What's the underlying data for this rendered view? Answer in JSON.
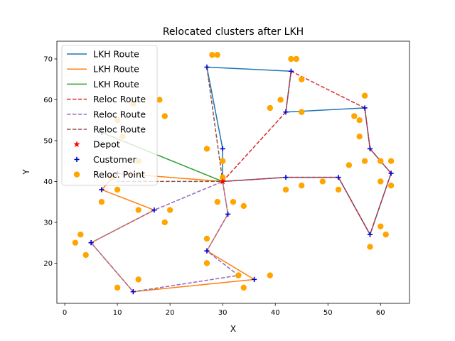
{
  "chart_data": {
    "type": "line",
    "title": "Relocated clusters after LKH",
    "xlabel": "X",
    "ylabel": "Y",
    "xlim": [
      -1.5,
      65.5
    ],
    "ylim": [
      10.15,
      74.35
    ],
    "xticks": [
      0,
      10,
      20,
      30,
      40,
      50,
      60
    ],
    "yticks": [
      20,
      30,
      40,
      50,
      60,
      70
    ],
    "grid": false,
    "legend_position": "top-left",
    "depot": [
      30,
      40
    ],
    "series": [
      {
        "name": "LKH Route",
        "style": "solid",
        "color": "#1f77b4",
        "points": [
          [
            30,
            40
          ],
          [
            30,
            48
          ],
          [
            27,
            68
          ],
          [
            43,
            67
          ],
          [
            42,
            57
          ],
          [
            57,
            58
          ],
          [
            58,
            48
          ],
          [
            62,
            42
          ],
          [
            58,
            27
          ],
          [
            52,
            41
          ],
          [
            42,
            41
          ],
          [
            30,
            40
          ]
        ]
      },
      {
        "name": "LKH Route",
        "style": "solid",
        "color": "#ff7f0e",
        "points": [
          [
            30,
            40
          ],
          [
            31,
            32
          ],
          [
            27,
            23
          ],
          [
            36,
            16
          ],
          [
            13,
            13
          ],
          [
            5,
            25
          ],
          [
            17,
            33
          ],
          [
            7,
            38
          ],
          [
            10,
            42
          ],
          [
            30,
            40
          ]
        ]
      },
      {
        "name": "LKH Route",
        "style": "solid",
        "color": "#2ca02c",
        "points": [
          [
            30,
            40
          ],
          [
            7,
            52
          ],
          [
            30,
            40
          ]
        ]
      },
      {
        "name": "Reloc Route",
        "style": "dashed",
        "color": "#d62728",
        "points": [
          [
            30,
            40
          ],
          [
            42,
            57
          ],
          [
            43,
            67
          ],
          [
            57,
            58
          ],
          [
            58,
            48
          ],
          [
            62,
            42
          ],
          [
            58,
            27
          ],
          [
            52,
            41
          ],
          [
            42,
            41
          ],
          [
            30,
            40
          ]
        ]
      },
      {
        "name": "Reloc Route",
        "style": "dashed",
        "color": "#9467bd",
        "points": [
          [
            30,
            40
          ],
          [
            31,
            32
          ],
          [
            27,
            23
          ],
          [
            33,
            17
          ],
          [
            13,
            13
          ],
          [
            5,
            25
          ],
          [
            17,
            33
          ],
          [
            30,
            40
          ]
        ]
      },
      {
        "name": "Reloc Route",
        "style": "dashed",
        "color": "#8c564b",
        "points": [
          [
            27,
            68
          ],
          [
            30,
            40
          ],
          [
            10,
            40
          ]
        ]
      }
    ],
    "customers": [
      [
        30,
        48
      ],
      [
        27,
        68
      ],
      [
        43,
        67
      ],
      [
        42,
        57
      ],
      [
        57,
        58
      ],
      [
        58,
        48
      ],
      [
        62,
        42
      ],
      [
        58,
        27
      ],
      [
        52,
        41
      ],
      [
        42,
        41
      ],
      [
        31,
        32
      ],
      [
        27,
        23
      ],
      [
        36,
        16
      ],
      [
        13,
        13
      ],
      [
        5,
        25
      ],
      [
        17,
        33
      ],
      [
        7,
        38
      ],
      [
        10,
        42
      ],
      [
        7,
        52
      ]
    ],
    "reloc_points": [
      [
        28,
        71
      ],
      [
        29,
        71
      ],
      [
        43,
        70
      ],
      [
        44,
        70
      ],
      [
        45,
        65
      ],
      [
        41,
        60
      ],
      [
        39,
        58
      ],
      [
        45,
        57
      ],
      [
        57,
        61
      ],
      [
        55,
        56
      ],
      [
        56,
        55
      ],
      [
        56,
        51
      ],
      [
        18,
        60
      ],
      [
        19,
        56
      ],
      [
        13,
        59
      ],
      [
        10,
        55
      ],
      [
        11,
        51
      ],
      [
        14,
        45
      ],
      [
        27,
        48
      ],
      [
        30,
        45
      ],
      [
        30,
        41
      ],
      [
        9,
        41
      ],
      [
        10,
        38
      ],
      [
        7,
        35
      ],
      [
        14,
        33
      ],
      [
        20,
        33
      ],
      [
        19,
        30
      ],
      [
        29,
        35
      ],
      [
        32,
        35
      ],
      [
        34,
        34
      ],
      [
        54,
        44
      ],
      [
        57,
        45
      ],
      [
        60,
        45
      ],
      [
        62,
        45
      ],
      [
        60,
        40
      ],
      [
        62,
        39
      ],
      [
        42,
        38
      ],
      [
        45,
        39
      ],
      [
        49,
        40
      ],
      [
        52,
        38
      ],
      [
        60,
        29
      ],
      [
        61,
        27
      ],
      [
        58,
        24
      ],
      [
        27,
        26
      ],
      [
        27,
        20
      ],
      [
        33,
        17
      ],
      [
        39,
        17
      ],
      [
        34,
        14
      ],
      [
        14,
        16
      ],
      [
        10,
        14
      ],
      [
        3,
        27
      ],
      [
        2,
        25
      ],
      [
        4,
        22
      ]
    ],
    "legend": [
      {
        "label": "LKH Route",
        "kind": "line",
        "style": "solid",
        "color": "#1f77b4"
      },
      {
        "label": "LKH Route",
        "kind": "line",
        "style": "solid",
        "color": "#ff7f0e"
      },
      {
        "label": "LKH Route",
        "kind": "line",
        "style": "solid",
        "color": "#2ca02c"
      },
      {
        "label": "Reloc Route",
        "kind": "line",
        "style": "dashed",
        "color": "#d62728"
      },
      {
        "label": "Reloc Route",
        "kind": "line",
        "style": "dashed",
        "color": "#9467bd"
      },
      {
        "label": "Reloc Route",
        "kind": "line",
        "style": "dashed",
        "color": "#8c564b"
      },
      {
        "label": "Depot",
        "kind": "star",
        "color": "#ff0000"
      },
      {
        "label": "Customer",
        "kind": "plus",
        "color": "#0000cc"
      },
      {
        "label": "Reloc. Point",
        "kind": "dot",
        "color": "#ffa500"
      }
    ]
  }
}
